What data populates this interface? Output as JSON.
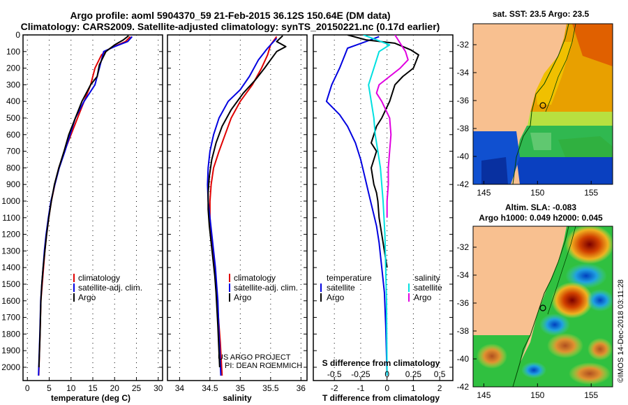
{
  "header": {
    "title_line1": "Argo profile: aoml 5904370_59 21-Feb-2015 36.12S 150.64E (DM data)",
    "title_line2": "Climatology: CARS2009. Satellite-adjusted climatology: synTS_20150221.nc (0.17d earlier)"
  },
  "colors": {
    "climatology": "#e00000",
    "satellite": "#0000e0",
    "argo": "#000000",
    "sat_salinity": "#00e0e0",
    "argo_salinity": "#e000e0",
    "land": "#f8c090"
  },
  "chart_data": [
    {
      "type": "line",
      "panel": "temperature",
      "xlabel": "temperature (deg C)",
      "xlim": [
        -1,
        31
      ],
      "ylim": [
        2080,
        0
      ],
      "xticks": [
        0,
        5,
        10,
        15,
        20,
        25,
        30
      ],
      "yticks": [
        0,
        100,
        200,
        300,
        400,
        500,
        600,
        700,
        800,
        900,
        1000,
        1100,
        1200,
        1300,
        1400,
        1500,
        1600,
        1700,
        1800,
        1900,
        2000
      ],
      "legend": [
        "climatology",
        "satellite-adj. clim.",
        "Argo"
      ],
      "series": [
        {
          "name": "climatology",
          "color": "#e00000",
          "x": [
            23.6,
            22.5,
            19,
            17,
            15.5,
            14.5,
            13,
            11.5,
            10,
            8.5,
            7.2,
            6.3,
            5.5,
            4.9,
            4.4,
            4,
            3.7,
            3.4,
            3.1,
            2.9,
            2.6
          ],
          "y": [
            10,
            40,
            80,
            120,
            200,
            300,
            400,
            500,
            600,
            700,
            800,
            900,
            1000,
            1100,
            1200,
            1300,
            1400,
            1500,
            1600,
            1800,
            2050
          ]
        },
        {
          "name": "satellite-adj. clim.",
          "color": "#0000e0",
          "x": [
            24,
            23,
            20,
            17.5,
            16.5,
            15.5,
            13,
            11,
            9.8,
            8.6,
            7.3,
            6.3,
            5.4,
            4.8,
            4.3,
            3.9,
            3.6,
            3.3,
            3.05,
            2.85,
            2.55
          ],
          "y": [
            10,
            40,
            70,
            100,
            200,
            300,
            400,
            500,
            600,
            700,
            800,
            900,
            1000,
            1100,
            1200,
            1300,
            1400,
            1500,
            1600,
            1800,
            2050
          ]
        },
        {
          "name": "Argo",
          "color": "#000000",
          "x": [
            23.2,
            22,
            20,
            18,
            16.5,
            16,
            14.5,
            12.5,
            11,
            9.5,
            8.4,
            7.2,
            6.2,
            5.5,
            4.9,
            4.4,
            4,
            3.6,
            3.3,
            3.1,
            2.9,
            2.65
          ],
          "y": [
            5,
            30,
            60,
            100,
            180,
            250,
            300,
            400,
            500,
            600,
            700,
            800,
            900,
            1000,
            1100,
            1200,
            1300,
            1400,
            1500,
            1600,
            1800,
            2000
          ]
        }
      ]
    },
    {
      "type": "line",
      "panel": "salinity",
      "xlabel": "salinity",
      "xlim": [
        33.8,
        36.1
      ],
      "ylim": [
        2080,
        0
      ],
      "xticks": [
        34,
        34.5,
        35,
        35.5,
        36
      ],
      "legend": [
        "climatology",
        "satellite-adj. clim.",
        "Argo"
      ],
      "series": [
        {
          "name": "climatology",
          "color": "#e00000",
          "x": [
            35.6,
            35.5,
            35.45,
            35.35,
            35.2,
            35,
            34.85,
            34.75,
            34.65,
            34.56,
            34.52,
            34.5,
            34.5,
            34.52,
            34.55,
            34.58,
            34.6,
            34.62,
            34.64,
            34.67,
            34.7
          ],
          "y": [
            10,
            60,
            120,
            200,
            300,
            400,
            500,
            600,
            700,
            800,
            900,
            1000,
            1100,
            1200,
            1300,
            1400,
            1500,
            1600,
            1700,
            1850,
            2050
          ]
        },
        {
          "name": "satellite-adj. clim.",
          "color": "#0000e0",
          "x": [
            35.6,
            35.45,
            35.3,
            35.15,
            35,
            34.8,
            34.65,
            34.56,
            34.5,
            34.47,
            34.46,
            34.47,
            34.5,
            34.53,
            34.56,
            34.59,
            34.61,
            34.63,
            34.65,
            34.68
          ],
          "y": [
            20,
            80,
            150,
            250,
            330,
            400,
            500,
            600,
            700,
            800,
            900,
            1000,
            1100,
            1200,
            1300,
            1400,
            1500,
            1600,
            1800,
            2050
          ]
        },
        {
          "name": "Argo",
          "color": "#000000",
          "x": [
            35.7,
            35.6,
            35.75,
            35.6,
            35.5,
            35.4,
            35.25,
            35.05,
            34.85,
            34.7,
            34.6,
            34.53,
            34.49,
            34.47,
            34.47,
            34.49,
            34.52,
            34.55,
            34.58,
            34.6,
            34.63,
            34.66
          ],
          "y": [
            5,
            40,
            70,
            100,
            150,
            200,
            270,
            350,
            450,
            550,
            650,
            750,
            850,
            950,
            1050,
            1150,
            1250,
            1350,
            1450,
            1550,
            1750,
            2000
          ]
        }
      ],
      "annotation": [
        "US ARGO PROJECT",
        "PI: DEAN ROEMMICH"
      ]
    },
    {
      "type": "line",
      "panel": "difference",
      "xlabel": "T difference from climatology",
      "top_xlabel": "S difference from climatology",
      "xlim": [
        -2.8,
        2.5
      ],
      "ylim": [
        2080,
        0
      ],
      "xticks": [
        -2,
        -1,
        0,
        1,
        2
      ],
      "top_xticks": [
        "-0.5",
        "-0.25",
        "0",
        "0.25",
        "0.5"
      ],
      "legend_left_title": "temperature",
      "legend_left": [
        "satellite",
        "Argo"
      ],
      "legend_right_title": "salinity",
      "legend_right": [
        "satellite",
        "Argo"
      ],
      "series": [
        {
          "name": "satellite",
          "color": "#0000e0",
          "x": [
            -0.3,
            -0.8,
            -1.5,
            -1.6,
            -1.8,
            -2.1,
            -2.3,
            -1.8,
            -1.5,
            -1.2,
            -1.0,
            -0.85,
            -0.7,
            -0.55,
            -0.4,
            -0.3,
            -0.2,
            -0.1,
            -0.05,
            0
          ],
          "y": [
            10,
            40,
            80,
            120,
            200,
            300,
            400,
            480,
            550,
            650,
            750,
            850,
            950,
            1050,
            1150,
            1250,
            1400,
            1550,
            1750,
            2050
          ]
        },
        {
          "name": "Argo",
          "color": "#000000",
          "x": [
            -1.5,
            -0.8,
            0.3,
            0.9,
            1.2,
            1.0,
            0.6,
            0.3,
            0.1,
            -0.2,
            -0.4,
            -0.5,
            -0.6,
            -0.4,
            -0.5,
            -0.6,
            -0.55,
            -0.5,
            -0.4,
            -0.35,
            -0.3,
            -0.2,
            -0.1,
            0
          ],
          "y": [
            0,
            30,
            50,
            90,
            120,
            200,
            250,
            300,
            400,
            500,
            550,
            600,
            650,
            700,
            750,
            800,
            850,
            900,
            950,
            1000,
            1100,
            1200,
            1300,
            1400
          ]
        },
        {
          "name": "satellite",
          "color": "#00e0e0",
          "x": [
            -0.9,
            -0.4,
            0.1,
            -0.3,
            -0.5,
            -0.7,
            -0.6,
            -0.5,
            -0.45,
            -0.35,
            -0.25,
            -0.15,
            -0.08,
            -0.02,
            0
          ],
          "y": [
            0,
            30,
            60,
            100,
            200,
            300,
            400,
            500,
            600,
            700,
            800,
            1000,
            1200,
            1600,
            2050
          ]
        },
        {
          "name": "Argo",
          "color": "#e000e0",
          "x": [
            0.3,
            0.5,
            0.7,
            0.8,
            0.5,
            0.1,
            -0.3,
            -0.4,
            -0.2,
            0.1,
            0.15,
            0.1,
            0.05,
            0.05,
            0.0,
            0.0
          ],
          "y": [
            0,
            50,
            100,
            150,
            200,
            250,
            300,
            350,
            400,
            500,
            600,
            700,
            800,
            900,
            1000,
            1100
          ]
        }
      ]
    },
    {
      "type": "heatmap",
      "panel": "sst-map",
      "title": "sat. SST: 23.5  Argo: 23.5",
      "x_ticks": [
        145,
        150,
        155
      ],
      "y_ticks": [
        -32,
        -34,
        -36,
        -38,
        -40,
        -42
      ],
      "xlim": [
        144,
        157
      ],
      "ylim": [
        -42,
        -30.5
      ]
    },
    {
      "type": "heatmap",
      "panel": "sla-map",
      "title_line1": "Altim. SLA: -0.083",
      "title_line2": "Argo h1000: 0.049  h2000: 0.045",
      "x_ticks": [
        145,
        150,
        155
      ],
      "y_ticks": [
        -32,
        -34,
        -36,
        -38,
        -40,
        -42
      ],
      "xlim": [
        144,
        157
      ],
      "ylim": [
        -42,
        -30.5
      ]
    }
  ],
  "footer": {
    "credit": "©IMOS 14-Dec-2018 03:11:28"
  }
}
